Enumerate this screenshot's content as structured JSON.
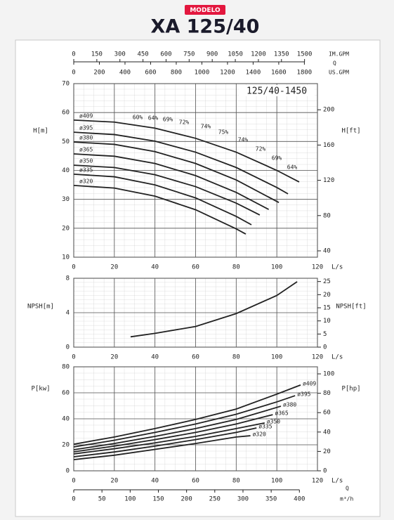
{
  "header": {
    "badge": "MODELO",
    "title": "XA 125/40"
  },
  "chart_data": [
    {
      "type": "line",
      "title": "125/40-1450",
      "ylabel": "H[m]",
      "y2label": "H[ft]",
      "xlabel": "L/s",
      "xlim": [
        0,
        120
      ],
      "xticks": [
        0,
        20,
        40,
        60,
        80,
        100,
        120
      ],
      "ylim": [
        10,
        70
      ],
      "yticks": [
        10,
        20,
        30,
        40,
        50,
        60,
        70
      ],
      "y2lim": [
        32.81,
        229.66
      ],
      "y2ticks": [
        40,
        80,
        120,
        160,
        200
      ],
      "grid": true,
      "series": [
        {
          "name": "ø409",
          "color": "#222222",
          "x": [
            0,
            20,
            40,
            60,
            80,
            100,
            111
          ],
          "values": [
            57.4,
            56.7,
            54.6,
            51.1,
            46.3,
            40.0,
            36.0
          ]
        },
        {
          "name": "ø395",
          "color": "#222222",
          "x": [
            0,
            20,
            40,
            60,
            80,
            100,
            105.5
          ],
          "values": [
            53.2,
            52.4,
            50.1,
            46.3,
            41.0,
            34.1,
            31.9
          ]
        },
        {
          "name": "ø380",
          "color": "#222222",
          "x": [
            0,
            20,
            40,
            60,
            80,
            101
          ],
          "values": [
            49.8,
            49.0,
            46.5,
            42.4,
            36.7,
            28.9
          ]
        },
        {
          "name": "ø365",
          "color": "#222222",
          "x": [
            0,
            20,
            40,
            60,
            80,
            96
          ],
          "values": [
            45.7,
            44.9,
            42.4,
            38.2,
            32.4,
            26.5
          ]
        },
        {
          "name": "ø350",
          "color": "#222222",
          "x": [
            0,
            20,
            40,
            60,
            80,
            91.6
          ],
          "values": [
            41.8,
            41.0,
            38.5,
            34.4,
            28.7,
            24.6
          ]
        },
        {
          "name": "ø335",
          "color": "#222222",
          "x": [
            0,
            20,
            40,
            60,
            80,
            87.5
          ],
          "values": [
            38.7,
            37.8,
            35.0,
            30.5,
            24.1,
            21.2
          ]
        },
        {
          "name": "ø320",
          "color": "#222222",
          "x": [
            0,
            20,
            40,
            60,
            80,
            84.7
          ],
          "values": [
            34.8,
            33.9,
            31.1,
            26.4,
            19.8,
            18.0
          ]
        }
      ],
      "annotations": [
        "60%",
        "64%",
        "69%",
        "72%",
        "74%",
        "75%",
        "74%",
        "72%",
        "69%",
        "64%"
      ],
      "quantity_label": "Q",
      "x2_axes": [
        {
          "label": "IM.GPM",
          "xlim": [
            0,
            1583.8
          ],
          "xticks": [
            0,
            150,
            300,
            450,
            600,
            750,
            900,
            1050,
            1200,
            1350,
            1500
          ]
        },
        {
          "label": "US.GPM",
          "xlim": [
            0,
            1902
          ],
          "xticks": [
            0,
            200,
            400,
            600,
            800,
            1000,
            1200,
            1400,
            1600,
            1800
          ]
        }
      ]
    },
    {
      "type": "line",
      "ylabel": "NPSH[m]",
      "y2label": "NPSH[ft]",
      "xlabel": "L/s",
      "xlim": [
        0,
        120
      ],
      "xticks": [
        0,
        20,
        40,
        60,
        80,
        100,
        120
      ],
      "ylim": [
        0,
        8
      ],
      "yticks": [
        0,
        4,
        8
      ],
      "y2lim": [
        0,
        26.25
      ],
      "y2ticks": [
        0,
        5,
        10,
        15,
        20,
        25
      ],
      "grid": true,
      "series": [
        {
          "color": "#222222",
          "x": [
            28,
            40,
            60,
            80,
            100,
            110
          ],
          "values": [
            1.2,
            1.6,
            2.4,
            3.9,
            6.0,
            7.6
          ]
        }
      ]
    },
    {
      "type": "line",
      "ylabel": "P[kw]",
      "y2label": "P[hp]",
      "xlabel": "L/s",
      "xlim": [
        0,
        120
      ],
      "xticks": [
        0,
        20,
        40,
        60,
        80,
        100,
        120
      ],
      "ylim": [
        0,
        80
      ],
      "yticks": [
        0,
        20,
        40,
        60,
        80
      ],
      "y2lim": [
        0,
        107.28
      ],
      "y2ticks": [
        0,
        20,
        40,
        60,
        80,
        100
      ],
      "grid": true,
      "series": [
        {
          "name": "ø409",
          "color": "#222222",
          "x": [
            0,
            20,
            40,
            60,
            80,
            100,
            111.7
          ],
          "values": [
            20.5,
            26,
            32.5,
            39.5,
            47.5,
            59,
            66
          ]
        },
        {
          "name": "ø395",
          "color": "#222222",
          "x": [
            0,
            20,
            40,
            60,
            80,
            100,
            109
          ],
          "values": [
            18.4,
            23.5,
            29.5,
            36,
            43.5,
            53,
            57.8
          ]
        },
        {
          "name": "ø380",
          "color": "#222222",
          "x": [
            0,
            20,
            40,
            60,
            80,
            102
          ],
          "values": [
            16.2,
            21,
            26.5,
            32.5,
            39.5,
            49.7
          ]
        },
        {
          "name": "ø365",
          "color": "#222222",
          "x": [
            0,
            20,
            40,
            60,
            80,
            98
          ],
          "values": [
            14.6,
            19,
            24,
            29.5,
            36,
            43.2
          ]
        },
        {
          "name": "ø350",
          "color": "#222222",
          "x": [
            0,
            20,
            40,
            60,
            80,
            94
          ],
          "values": [
            13,
            17,
            21.5,
            26.5,
            32.5,
            36.8
          ]
        },
        {
          "name": "ø335",
          "color": "#222222",
          "x": [
            0,
            20,
            40,
            60,
            80,
            90
          ],
          "values": [
            10.8,
            14.5,
            19,
            24,
            29.5,
            33
          ]
        },
        {
          "name": "ø320",
          "color": "#222222",
          "x": [
            0,
            20,
            40,
            60,
            80,
            87
          ],
          "values": [
            8.6,
            12,
            16.5,
            21,
            26,
            27
          ]
        }
      ],
      "quantity_label": "Q",
      "x2_axes": [
        {
          "label": "m³/h",
          "xlim": [
            0,
            432
          ],
          "xticks": [
            0,
            50,
            100,
            150,
            200,
            250,
            300,
            350,
            400
          ]
        }
      ]
    }
  ]
}
